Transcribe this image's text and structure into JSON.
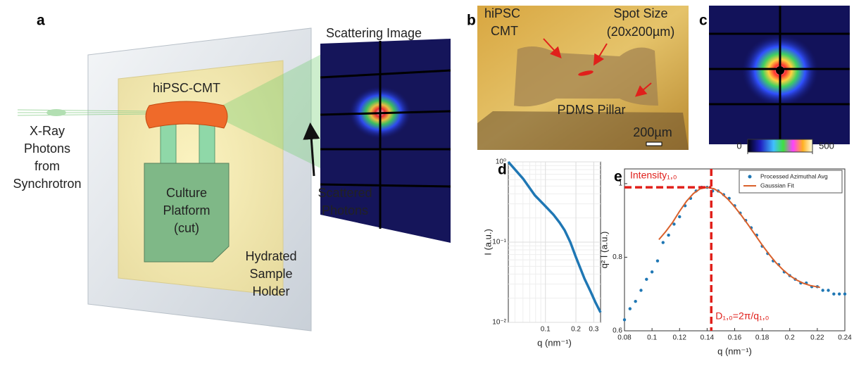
{
  "panel_a": {
    "letter": "a",
    "scattering_image": "Scattering Image",
    "tissue": "hiPSC-CMT",
    "source": [
      "X-Ray",
      "Photons",
      "from",
      "Synchrotron"
    ],
    "platform": [
      "Culture",
      "Platform",
      "(cut)"
    ],
    "holder": [
      "Hydrated",
      "Sample",
      "Holder"
    ],
    "scattered": [
      "Scattered",
      "Photons"
    ]
  },
  "panel_b": {
    "letter": "b",
    "tissue": [
      "hiPSC",
      "CMT"
    ],
    "spot": [
      "Spot Size",
      "(20x200µm)"
    ],
    "pillar": "PDMS Pillar",
    "scale_bar": "200µm"
  },
  "panel_c": {
    "letter": "c",
    "colorbar": {
      "lim": [
        0,
        500
      ],
      "ticks": [
        0,
        500
      ]
    }
  },
  "chart_data": [
    {
      "type": "line",
      "letter": "d",
      "x_label": "q (nm⁻¹)",
      "y_label": "I (a.u.)",
      "log_x": true,
      "log_y": true,
      "grid": true,
      "xlim": [
        0.043,
        0.35
      ],
      "ylim": [
        0.01,
        1
      ],
      "xticks": [
        0.1,
        0.2,
        0.3
      ],
      "yticks": [
        {
          "value": 1,
          "label": "10⁰"
        },
        {
          "value": 0.1,
          "label": "10⁻¹"
        },
        {
          "value": 0.01,
          "label": "10⁻²"
        }
      ],
      "x": [
        0.043,
        0.06,
        0.0786,
        0.1,
        0.12,
        0.138,
        0.155,
        0.176,
        0.2,
        0.243,
        0.28,
        0.31,
        0.35
      ],
      "series": [
        {
          "color": "#1f77b4",
          "values": [
            1,
            0.62,
            0.383,
            0.28,
            0.22,
            0.175,
            0.14,
            0.1,
            0.065,
            0.035,
            0.024,
            0.018,
            0.0133
          ]
        }
      ]
    },
    {
      "type": "scatter",
      "letter": "e",
      "x_label": "q (nm⁻¹)",
      "y_label": "q² I (a.u.)",
      "grid": false,
      "xlim": [
        0.08,
        0.24
      ],
      "ylim": [
        0.6,
        1.04
      ],
      "xticks": [
        0.08,
        0.1,
        0.12,
        0.14,
        0.16,
        0.18,
        0.2,
        0.22,
        0.24
      ],
      "yticks": [
        0.6,
        0.8,
        1
      ],
      "peak": {
        "x": 0.143,
        "y": 0.99,
        "x_label": "D₁,₀=2π/q₁,₀",
        "y_label": "Intensity₁,₀",
        "color": "#e0201b"
      },
      "series": [
        {
          "name": "Processed Azimuthal Avg",
          "color": "#1f77b4",
          "type": "scatter",
          "x": [
            0.08,
            0.084,
            0.088,
            0.092,
            0.096,
            0.1,
            0.104,
            0.108,
            0.112,
            0.116,
            0.12,
            0.124,
            0.128,
            0.132,
            0.136,
            0.14,
            0.144,
            0.148,
            0.152,
            0.156,
            0.16,
            0.164,
            0.168,
            0.172,
            0.176,
            0.18,
            0.184,
            0.188,
            0.192,
            0.196,
            0.2,
            0.204,
            0.208,
            0.212,
            0.216,
            0.22,
            0.224,
            0.228,
            0.232,
            0.236,
            0.24
          ],
          "values": [
            0.63,
            0.66,
            0.68,
            0.71,
            0.74,
            0.76,
            0.79,
            0.84,
            0.86,
            0.89,
            0.91,
            0.94,
            0.96,
            0.98,
            0.99,
            0.99,
            0.98,
            0.98,
            0.97,
            0.96,
            0.94,
            0.92,
            0.9,
            0.88,
            0.86,
            0.83,
            0.81,
            0.79,
            0.78,
            0.76,
            0.75,
            0.74,
            0.73,
            0.73,
            0.72,
            0.72,
            0.71,
            0.71,
            0.7,
            0.7,
            0.7
          ]
        },
        {
          "name": "Gaussian Fit",
          "color": "#d9602b",
          "type": "line",
          "x": [
            0.105,
            0.11,
            0.115,
            0.12,
            0.125,
            0.13,
            0.135,
            0.14,
            0.145,
            0.15,
            0.155,
            0.16,
            0.165,
            0.17,
            0.175,
            0.18,
            0.185,
            0.19,
            0.195,
            0.2,
            0.205,
            0.21,
            0.215,
            0.222
          ],
          "values": [
            0.848,
            0.87,
            0.895,
            0.925,
            0.952,
            0.973,
            0.986,
            0.99,
            0.986,
            0.975,
            0.958,
            0.937,
            0.913,
            0.887,
            0.86,
            0.833,
            0.808,
            0.785,
            0.766,
            0.75,
            0.738,
            0.729,
            0.723,
            0.718
          ]
        }
      ]
    }
  ]
}
